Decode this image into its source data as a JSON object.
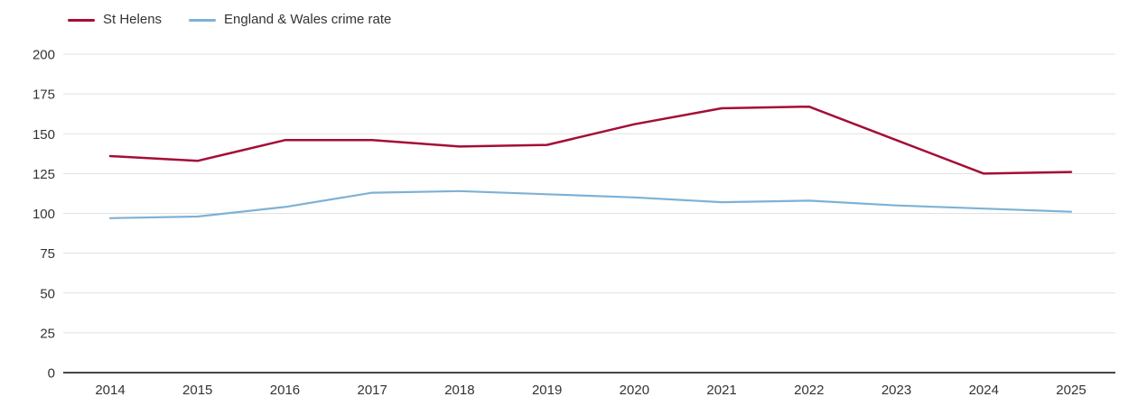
{
  "chart_data": {
    "type": "line",
    "x": [
      2014,
      2015,
      2016,
      2017,
      2018,
      2019,
      2020,
      2021,
      2022,
      2023,
      2024,
      2025
    ],
    "series": [
      {
        "name": "St Helens",
        "color": "#a50d36",
        "values": [
          136,
          133,
          146,
          146,
          142,
          143,
          156,
          166,
          167,
          146,
          125,
          126
        ]
      },
      {
        "name": "England & Wales crime rate",
        "color": "#7eb1d6",
        "values": [
          97,
          98,
          104,
          113,
          114,
          112,
          110,
          107,
          108,
          105,
          103,
          101
        ]
      }
    ],
    "ylim": [
      0,
      200
    ],
    "yticks": [
      0,
      25,
      50,
      75,
      100,
      125,
      150,
      175,
      200
    ],
    "grid": "horizontal",
    "legend_position": "top-left",
    "colors": {
      "grid_line": "#e1e1e1",
      "axis_line": "#2b2b2b",
      "tick_label": "#333333",
      "background": "#ffffff"
    }
  }
}
